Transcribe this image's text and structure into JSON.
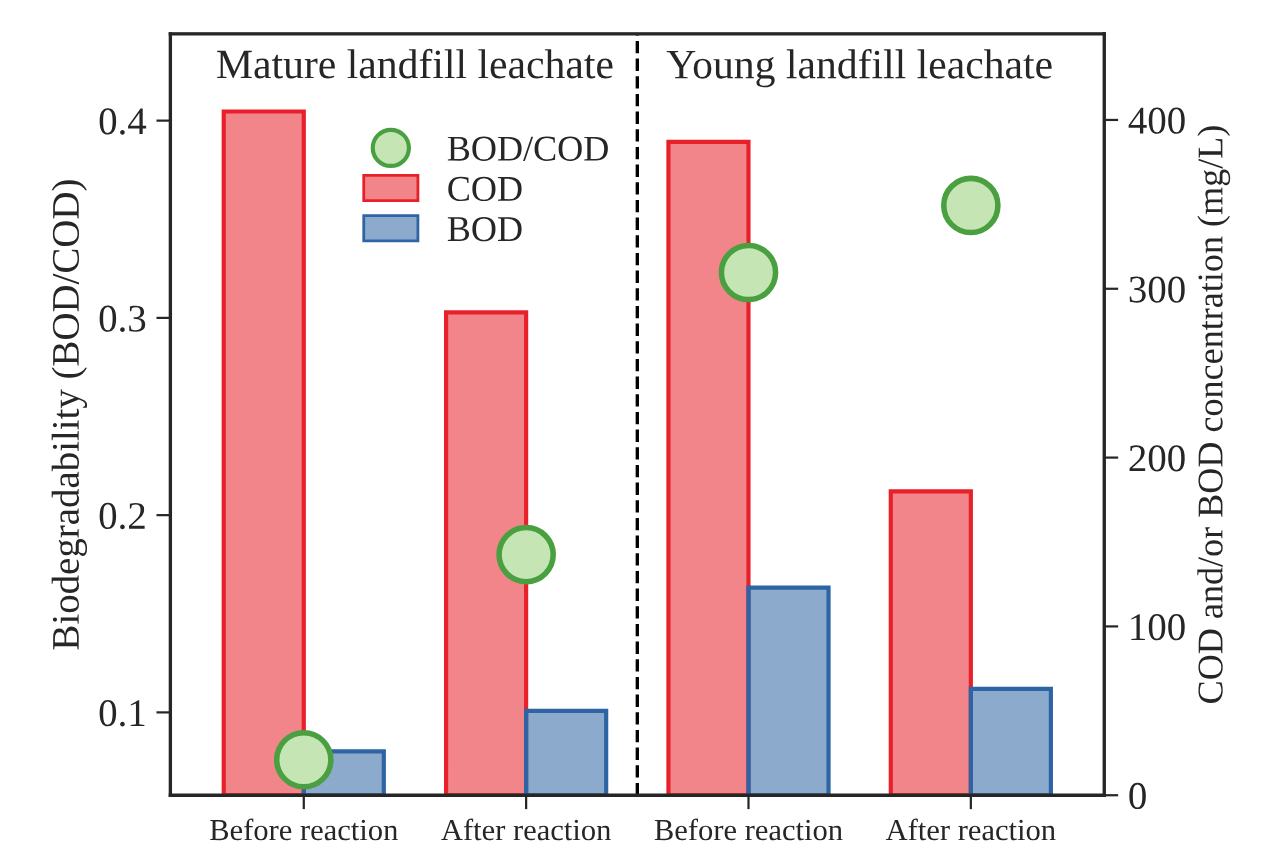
{
  "chart_data": {
    "type": "bar",
    "ylabel": "Biodegradability (BOD/COD)",
    "y2label": "COD and/or BOD concentration (mg/L)",
    "categories": [
      "Before reaction",
      "After reaction",
      "Before reaction",
      "After reaction"
    ],
    "series": [
      {
        "name": "BOD/COD",
        "type": "scatter",
        "color": "#c5e5b5",
        "values": [
          0.076,
          0.18,
          0.323,
          0.357
        ]
      },
      {
        "name": "COD",
        "axis": "y2",
        "color": "#e8202a",
        "values": [
          405,
          286,
          387,
          180
        ]
      },
      {
        "name": "BOD",
        "axis": "y2",
        "color": "#2e64a3",
        "values": [
          26,
          50,
          123,
          63
        ]
      }
    ],
    "ylim": [
      0.058,
      0.444
    ],
    "yticks": [
      0.1,
      0.2,
      0.3,
      0.4
    ],
    "y2lim": [
      0,
      451
    ],
    "y2ticks": [
      0,
      100,
      200,
      300,
      400
    ],
    "annotations": [
      "Mature landfill leachate",
      "Young landfill leachate"
    ],
    "legend": "top left",
    "grid": false,
    "marker": "circle"
  }
}
